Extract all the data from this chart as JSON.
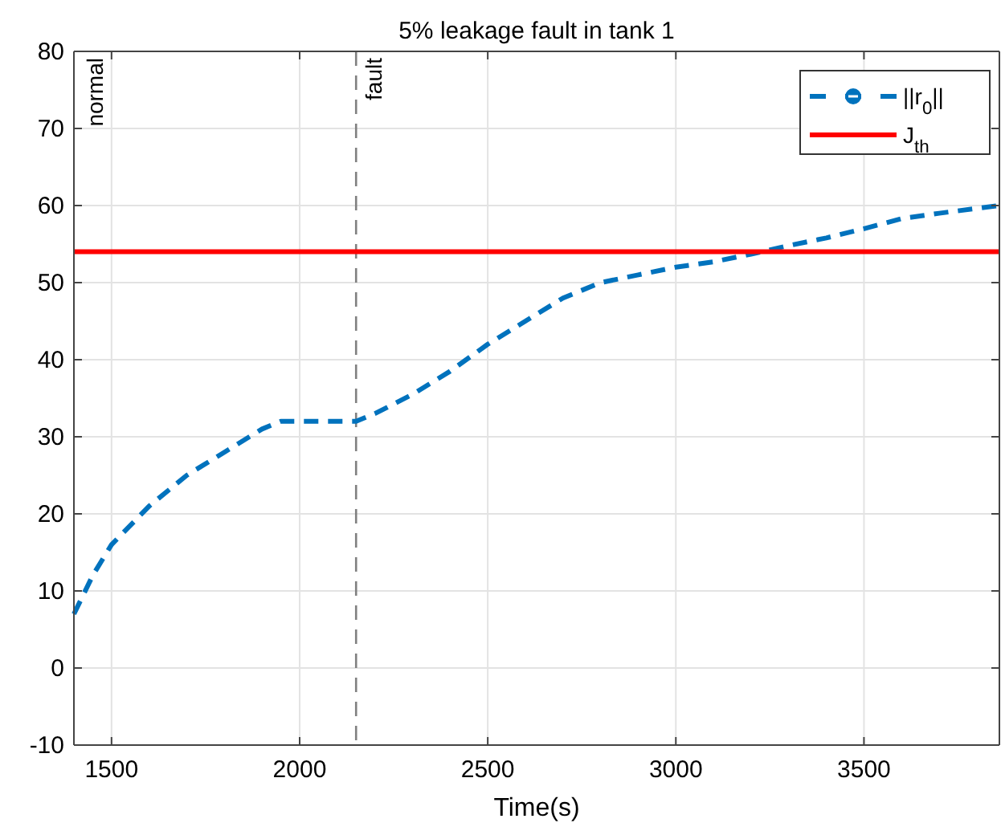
{
  "chart_data": {
    "type": "line",
    "title": "5%  leakage fault in tank 1",
    "xlabel": "Time(s)",
    "xlim": [
      1400,
      3860
    ],
    "xticks": [
      1500,
      2000,
      2500,
      3000,
      3500
    ],
    "ylim": [
      -10,
      80
    ],
    "yticks": [
      -10,
      0,
      10,
      20,
      30,
      40,
      50,
      60,
      70,
      80
    ],
    "grid": true,
    "legend": "top right",
    "annotations": [
      "normal"
    ],
    "ref_lines": [
      {
        "axis": "x",
        "value": 2150,
        "label": "fault",
        "color": "#808080",
        "line_style": "dashed"
      }
    ],
    "series": [
      {
        "name": "||r$_{0}$||",
        "color": "#0072bd",
        "line_style": "dashed",
        "x": [
          1400,
          1450,
          1500,
          1600,
          1700,
          1800,
          1900,
          1950,
          2000,
          2150,
          2200,
          2300,
          2400,
          2500,
          2600,
          2700,
          2800,
          2900,
          3000,
          3100,
          3200,
          3300,
          3400,
          3500,
          3600,
          3700,
          3860
        ],
        "values": [
          7,
          12,
          16,
          21,
          25,
          28,
          31,
          32,
          32,
          32,
          33,
          35.5,
          38.5,
          42,
          45,
          48,
          50,
          51,
          52,
          52.7,
          53.7,
          54.8,
          55.8,
          57,
          58.3,
          59,
          60
        ]
      },
      {
        "name": "J$_{th}$",
        "color": "#ff0000",
        "line_style": "solid",
        "x": [
          1400,
          3860
        ],
        "values": [
          54,
          54
        ]
      }
    ]
  }
}
